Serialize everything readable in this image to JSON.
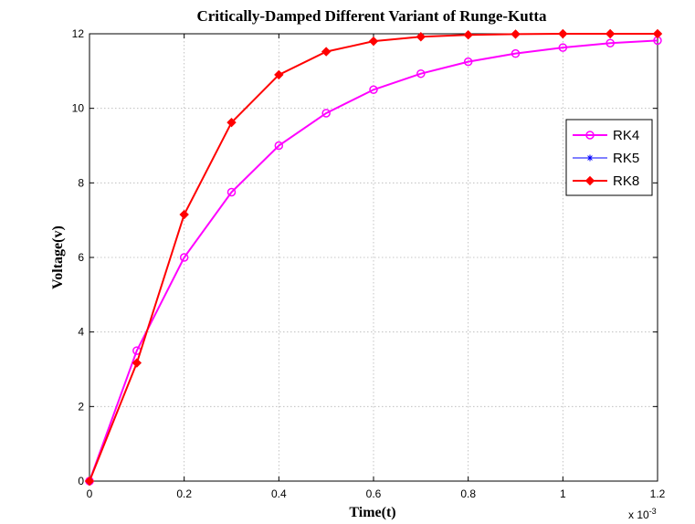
{
  "chart_data": {
    "type": "line",
    "title": "Critically-Damped Different Variant of Runge-Kutta",
    "xlabel": "Time(t)",
    "ylabel": "Voltage(v)",
    "x_multiplier_label": "x 10",
    "x_multiplier_exponent": "-3",
    "xlim": [
      0,
      1.2
    ],
    "ylim": [
      0,
      12
    ],
    "xticks": [
      "0",
      "0.2",
      "0.4",
      "0.6",
      "0.8",
      "1",
      "1.2"
    ],
    "yticks": [
      "0",
      "2",
      "4",
      "6",
      "8",
      "10",
      "12"
    ],
    "grid": true,
    "legend_position": "right",
    "x": [
      0,
      0.1,
      0.2,
      0.3,
      0.4,
      0.5,
      0.6,
      0.7,
      0.8,
      0.9,
      1.0,
      1.1,
      1.2
    ],
    "series": [
      {
        "name": "RK4",
        "color": "#ff00ff",
        "marker": "circle",
        "values": [
          0,
          3.5,
          6.0,
          7.75,
          9.0,
          9.87,
          10.5,
          10.93,
          11.25,
          11.47,
          11.63,
          11.75,
          11.82
        ]
      },
      {
        "name": "RK5",
        "color": "#0000ff",
        "marker": "star",
        "values": [
          0,
          3.17,
          7.15,
          9.62,
          10.9,
          11.52,
          11.8,
          11.92,
          11.97,
          11.99,
          12.0,
          12.0,
          12.0
        ]
      },
      {
        "name": "RK8",
        "color": "#ff0000",
        "marker": "diamond",
        "values": [
          0,
          3.17,
          7.15,
          9.62,
          10.9,
          11.52,
          11.8,
          11.92,
          11.97,
          11.99,
          12.0,
          12.0,
          12.0
        ]
      }
    ]
  }
}
